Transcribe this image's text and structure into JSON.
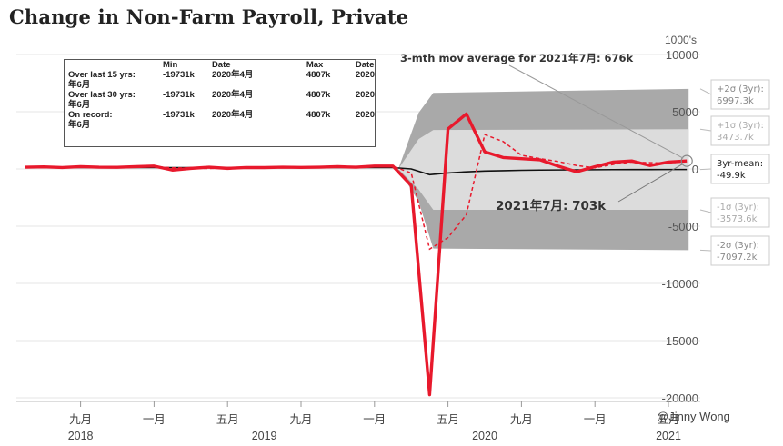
{
  "title": "Change in Non-Farm Payroll, Private",
  "units_label": "1000's",
  "watermark": "@Jinny Wong",
  "annotation_mov_avg": "3-mth mov average for 2021年7月: 676k",
  "annotation_latest": "2021年7月: 703k",
  "stats_table": {
    "headers": [
      "",
      "Min",
      "Date",
      "Max",
      "Date"
    ],
    "rows": [
      {
        "label": "Over last 15 yrs:",
        "min": "-19731k",
        "min_date": "2020年4月",
        "max": "4807k",
        "max_date": "2020",
        "extra": "年6月"
      },
      {
        "label": "Over last 30 yrs:",
        "min": "-19731k",
        "min_date": "2020年4月",
        "max": "4807k",
        "max_date": "2020",
        "extra": "年6月"
      },
      {
        "label": "On record:",
        "min": "-19731k",
        "min_date": "2020年4月",
        "max": "4807k",
        "max_date": "2020",
        "extra": "年6月"
      }
    ]
  },
  "right_labels": [
    {
      "id": "p2",
      "text1": "+2σ (3yr):",
      "text2": "6997.3k",
      "value": 6997.3,
      "color": "#888888"
    },
    {
      "id": "p1",
      "text1": "+1σ (3yr):",
      "text2": "3473.7k",
      "value": 3473.7,
      "color": "#aaaaaa"
    },
    {
      "id": "mean",
      "text1": "3yr-mean:",
      "text2": "-49.9k",
      "value": -49.9,
      "color": "#222222"
    },
    {
      "id": "m1",
      "text1": "-1σ (3yr):",
      "text2": "-3573.6k",
      "value": -3573.6,
      "color": "#aaaaaa"
    },
    {
      "id": "m2",
      "text1": "-2σ (3yr):",
      "text2": "-7097.2k",
      "value": -7097.2,
      "color": "#888888"
    }
  ],
  "colors": {
    "actual": "#e8192c",
    "mov_avg": "#e8192c",
    "mean": "#111111",
    "band1": "#dcdcdc",
    "band2": "#a9a9a9"
  },
  "chart_data": {
    "type": "line",
    "title": "Change in Non-Farm Payroll, Private",
    "ylabel": "1000's",
    "ylim": [
      -20000,
      10000
    ],
    "yticks": [
      10000,
      5000,
      0,
      -5000,
      -10000,
      -15000,
      -20000
    ],
    "x_start": "2018年6月",
    "x_end": "2021年7月",
    "x_month_ticks": [
      {
        "label": "九月",
        "month_index": 3
      },
      {
        "label": "一月",
        "month_index": 7
      },
      {
        "label": "五月",
        "month_index": 11
      },
      {
        "label": "九月",
        "month_index": 15
      },
      {
        "label": "一月",
        "month_index": 19
      },
      {
        "label": "五月",
        "month_index": 23
      },
      {
        "label": "九月",
        "month_index": 27
      },
      {
        "label": "一月",
        "month_index": 31
      },
      {
        "label": "五月",
        "month_index": 35
      }
    ],
    "x_year_labels": [
      {
        "label": "2018",
        "month_index": 3
      },
      {
        "label": "2019",
        "month_index": 13
      },
      {
        "label": "2020",
        "month_index": 25
      },
      {
        "label": "2021",
        "month_index": 35
      }
    ],
    "series": [
      {
        "name": "actual",
        "style": "solid",
        "values": [
          150,
          180,
          120,
          200,
          150,
          140,
          200,
          250,
          -100,
          50,
          150,
          50,
          120,
          120,
          150,
          130,
          150,
          200,
          150,
          250,
          250,
          -1450,
          -19731,
          3500,
          4807,
          1500,
          1000,
          900,
          800,
          250,
          -250,
          200,
          600,
          700,
          300,
          600,
          703
        ]
      },
      {
        "name": "3-mth mov avg",
        "style": "dashed",
        "values": [
          150,
          160,
          150,
          170,
          160,
          150,
          180,
          200,
          100,
          70,
          40,
          80,
          110,
          130,
          130,
          130,
          140,
          160,
          170,
          200,
          220,
          -350,
          -7000,
          -6000,
          -4000,
          3000,
          2400,
          1200,
          900,
          650,
          300,
          100,
          400,
          600,
          550,
          500,
          676
        ]
      }
    ],
    "mean_series": [
      120,
      120,
      120,
      120,
      120,
      120,
      120,
      120,
      120,
      120,
      120,
      120,
      120,
      120,
      120,
      120,
      120,
      120,
      120,
      120,
      120,
      0,
      -500,
      -350,
      -250,
      -180,
      -150,
      -120,
      -100,
      -90,
      -80,
      -70,
      -60,
      -55,
      -52,
      -50,
      -49.9
    ],
    "bands": {
      "sigma1_upper": 3473.7,
      "sigma1_lower": -3573.6,
      "sigma2_upper": 6997.3,
      "sigma2_lower": -7097.2
    }
  }
}
